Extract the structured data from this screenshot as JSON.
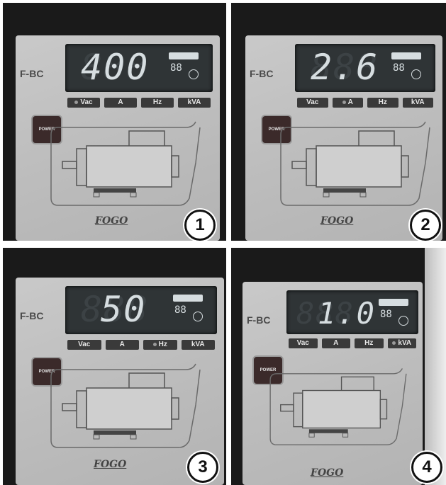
{
  "panels": [
    {
      "model": "F-BC",
      "reading": "400",
      "ghost": "888",
      "button": "POWER",
      "logo": "FOGO",
      "badge": "1",
      "labels": [
        "Vac",
        "A",
        "Hz",
        "kVA"
      ]
    },
    {
      "model": "F-BC",
      "reading": "2.6",
      "ghost": "888",
      "button": "POWER",
      "logo": "FOGO",
      "badge": "2",
      "labels": [
        "Vac",
        "A",
        "Hz",
        "kVA"
      ]
    },
    {
      "model": "F-BC",
      "reading": "50",
      "ghost": "888",
      "button": "POWER",
      "logo": "FOGO",
      "badge": "3",
      "labels": [
        "Vac",
        "A",
        "Hz",
        "kVA"
      ]
    },
    {
      "model": "F-BC",
      "reading": "1.0",
      "ghost": "888",
      "button": "POWER",
      "logo": "FOGO",
      "badge": "4",
      "labels": [
        "Vac",
        "A",
        "Hz",
        "kVA"
      ]
    }
  ],
  "active_unit_index": [
    0,
    1,
    2,
    3
  ],
  "colors": {
    "display_bg": "#2f3436",
    "digits": "#d6dde0",
    "panel": "#c2c2c2",
    "button": "#3b2a2a"
  }
}
